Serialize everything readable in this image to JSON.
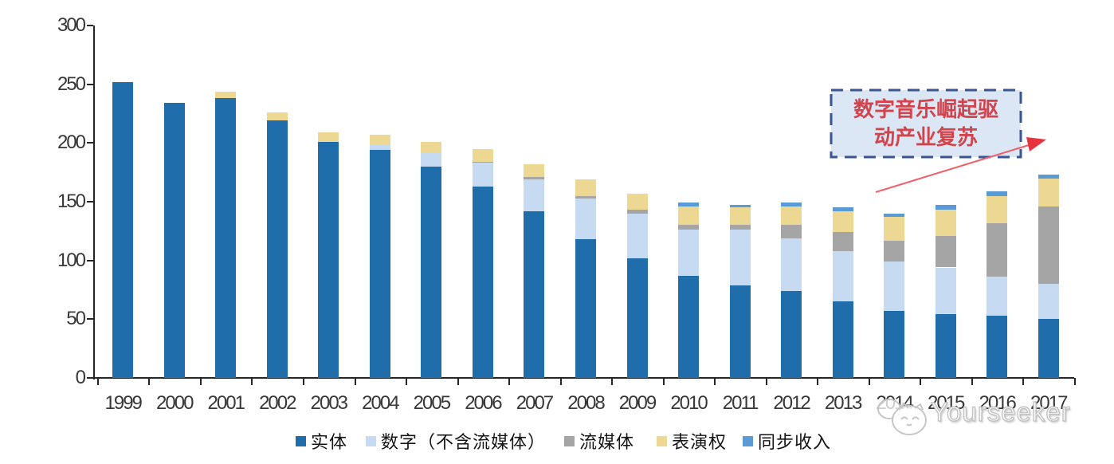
{
  "chart_data": {
    "type": "bar",
    "stacked": true,
    "title": "",
    "categories": [
      "1999",
      "2000",
      "2001",
      "2002",
      "2003",
      "2004",
      "2005",
      "2006",
      "2007",
      "2008",
      "2009",
      "2010",
      "2011",
      "2012",
      "2013",
      "2014",
      "2015",
      "2016",
      "2017"
    ],
    "series": [
      {
        "name": "实体",
        "color": "#1F6DAB",
        "values": [
          252,
          234,
          238,
          219,
          201,
          194,
          180,
          163,
          142,
          118,
          102,
          87,
          79,
          74,
          65,
          57,
          54,
          53,
          50
        ]
      },
      {
        "name": "数字（不含流媒体）",
        "color": "#C6DBF1",
        "values": [
          0,
          0,
          0,
          0,
          0,
          4,
          12,
          20,
          27,
          35,
          38,
          39,
          47,
          45,
          43,
          42,
          40,
          33,
          30
        ]
      },
      {
        "name": "流媒体",
        "color": "#A5A5A5",
        "values": [
          0,
          0,
          0,
          0,
          0,
          0,
          0,
          1,
          2,
          2,
          3,
          4,
          4,
          11,
          16,
          18,
          27,
          46,
          66
        ]
      },
      {
        "name": "表演权",
        "color": "#ECD793",
        "values": [
          0,
          0,
          6,
          7,
          8,
          9,
          9,
          11,
          11,
          14,
          14,
          16,
          15,
          16,
          18,
          20,
          22,
          23,
          24
        ]
      },
      {
        "name": "同步收入",
        "color": "#5B9BD5",
        "values": [
          0,
          0,
          0,
          0,
          0,
          0,
          0,
          0,
          0,
          0,
          0,
          3,
          2,
          3,
          3,
          3,
          4,
          4,
          3
        ]
      }
    ],
    "ylim": [
      0,
      300
    ],
    "yticks": [
      0,
      50,
      100,
      150,
      200,
      250,
      300
    ],
    "legend_position": "bottom",
    "grid": false
  },
  "annotation": {
    "lines": [
      "数字音乐崛起驱",
      "动产业复苏"
    ]
  },
  "watermark": {
    "text": "Yourseeker"
  },
  "colors": {
    "annotation_text": "#d2434c",
    "annotation_border": "#3a5494",
    "annotation_fill": "#dbe7f5",
    "arrow": "#ef5f68",
    "axis": "#262626",
    "labels": "#383838"
  }
}
